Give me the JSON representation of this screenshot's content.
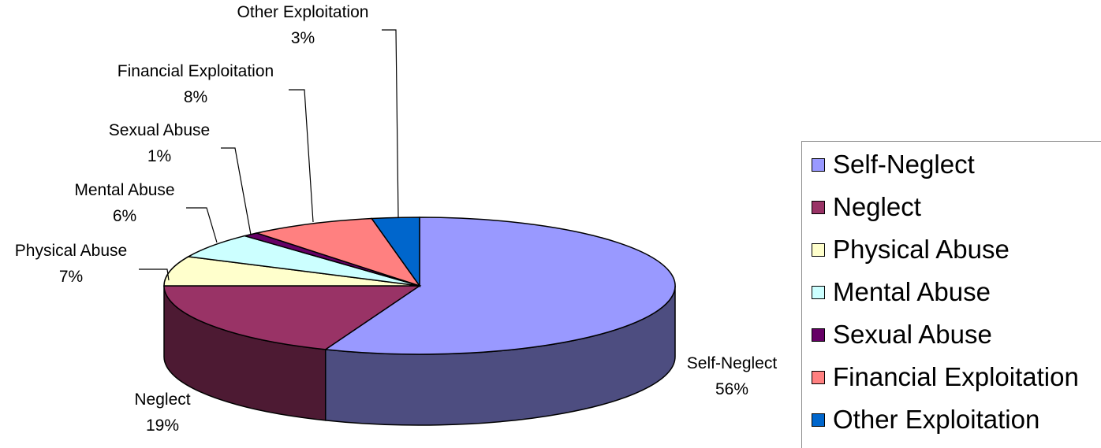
{
  "chart_data": {
    "type": "pie",
    "title": "",
    "labels": [
      "Self-Neglect",
      "Neglect",
      "Physical Abuse",
      "Mental Abuse",
      "Sexual Abuse",
      "Financial Exploitation",
      "Other Exploitation"
    ],
    "values": [
      56,
      19,
      7,
      6,
      1,
      8,
      3
    ],
    "value_labels": [
      "56%",
      "19%",
      "7%",
      "6%",
      "1%",
      "8%",
      "3%"
    ],
    "colors": [
      "#9999ff",
      "#993366",
      "#ffffcc",
      "#ccffff",
      "#660066",
      "#ff8080",
      "#0066cc"
    ],
    "three_d": true,
    "legend_position": "right"
  }
}
